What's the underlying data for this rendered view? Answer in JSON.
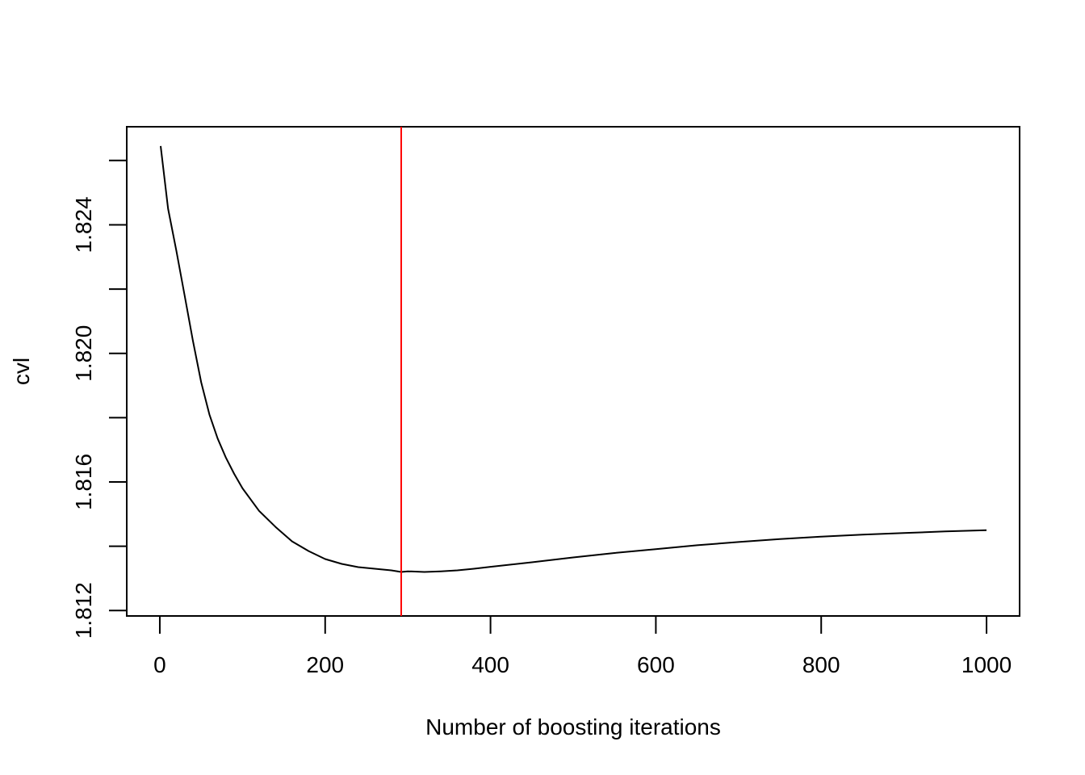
{
  "chart_data": {
    "type": "line",
    "title": "",
    "xlabel": "Number of boosting iterations",
    "ylabel": "cvl",
    "xlim": [
      -40,
      1040
    ],
    "ylim": [
      1.81183,
      1.82705
    ],
    "xticks": [
      0,
      200,
      400,
      600,
      800,
      1000
    ],
    "xtick_labels": [
      "0",
      "200",
      "400",
      "600",
      "800",
      "1000"
    ],
    "yticks": [
      1.812,
      1.814,
      1.816,
      1.818,
      1.82,
      1.822,
      1.824,
      1.826
    ],
    "ytick_labels": [
      "1.812",
      "",
      "1.816",
      "",
      "1.820",
      "",
      "1.824",
      ""
    ],
    "grid": false,
    "legend": "none",
    "series": [
      {
        "color": "#000000",
        "x": [
          1,
          10,
          20,
          30,
          40,
          50,
          60,
          70,
          80,
          90,
          100,
          120,
          140,
          160,
          180,
          200,
          220,
          240,
          260,
          280,
          292,
          300,
          320,
          340,
          360,
          380,
          400,
          450,
          500,
          550,
          600,
          650,
          700,
          750,
          800,
          850,
          900,
          950,
          1000
        ],
        "y": [
          1.82645,
          1.8245,
          1.8232,
          1.8218,
          1.8204,
          1.8191,
          1.8181,
          1.81735,
          1.81675,
          1.81625,
          1.8158,
          1.8151,
          1.8146,
          1.81415,
          1.81385,
          1.8136,
          1.81345,
          1.81335,
          1.8133,
          1.81325,
          1.8132,
          1.81322,
          1.8132,
          1.81322,
          1.81325,
          1.8133,
          1.81336,
          1.8135,
          1.81365,
          1.81379,
          1.81391,
          1.81403,
          1.81413,
          1.81422,
          1.8143,
          1.81436,
          1.81441,
          1.81446,
          1.8145
        ]
      }
    ],
    "vlines": [
      {
        "x": 292,
        "color": "#ff0000"
      }
    ]
  }
}
